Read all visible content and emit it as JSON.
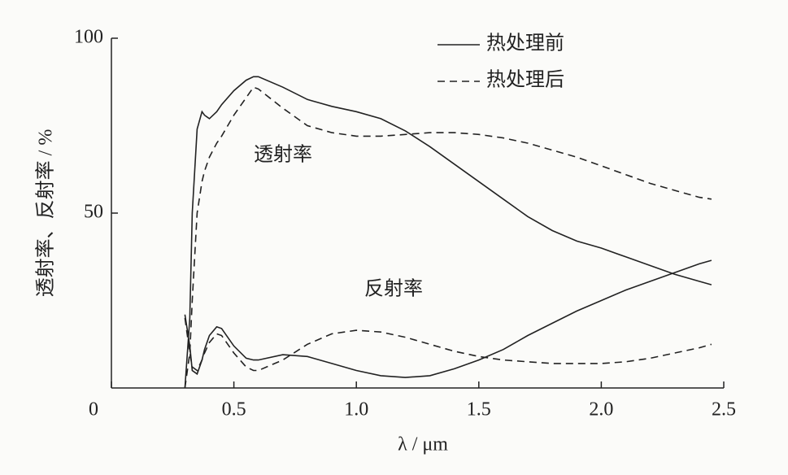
{
  "chart_data": {
    "type": "line",
    "xlabel": "λ / μm",
    "ylabel": "透射率、反射率 / %",
    "annotations": [
      "透射率",
      "反射率"
    ],
    "x": [
      0.3,
      0.32,
      0.33,
      0.35,
      0.37,
      0.38,
      0.4,
      0.43,
      0.45,
      0.5,
      0.55,
      0.58,
      0.6,
      0.7,
      0.8,
      0.9,
      1.0,
      1.1,
      1.2,
      1.3,
      1.4,
      1.5,
      1.6,
      1.7,
      1.8,
      1.9,
      2.0,
      2.1,
      2.2,
      2.3,
      2.4,
      2.45
    ],
    "series": [
      {
        "name": "热处理前",
        "color": "#222222",
        "style": "solid",
        "values": [
          0,
          20,
          50,
          74,
          79,
          78,
          77,
          79,
          81,
          85,
          88,
          89,
          89,
          86,
          82.5,
          80.5,
          79,
          77,
          73.5,
          69,
          64,
          59,
          54,
          49,
          45,
          42,
          40,
          37.5,
          35,
          32.5,
          30.5,
          29.5
        ]
      },
      {
        "name": "热处理后",
        "color": "#222222",
        "style": "dashed",
        "values": [
          0,
          10,
          25,
          50,
          59,
          62,
          66,
          70,
          72,
          78,
          83,
          86,
          85.5,
          80,
          75,
          73,
          72,
          72,
          72.5,
          73,
          73,
          72.5,
          71.5,
          70,
          68,
          66,
          63.5,
          61,
          58.5,
          56.5,
          54.5,
          54
        ]
      },
      {
        "color": "#222222",
        "style": "solid",
        "values": [
          21,
          12,
          5,
          4,
          8,
          11,
          15,
          17.5,
          17,
          12,
          8.5,
          8,
          8,
          9.5,
          9,
          7,
          5,
          3.5,
          3,
          3.5,
          5.5,
          8,
          11,
          15,
          18.5,
          22,
          25,
          28,
          30.5,
          33,
          35.5,
          36.5
        ]
      },
      {
        "color": "#222222",
        "style": "dashed",
        "values": [
          20,
          10,
          6,
          5,
          8,
          10,
          13,
          15.5,
          15,
          10,
          6,
          5,
          5,
          8,
          12.5,
          15.5,
          16.5,
          16,
          14.5,
          12.5,
          10.5,
          9,
          8,
          7.5,
          7,
          7,
          7,
          7.5,
          8.5,
          10,
          11.5,
          12.5
        ]
      }
    ],
    "xlim": [
      0,
      2.5
    ],
    "xticks": [
      0,
      0.5,
      {
        "value": 1,
        "label": "1.0"
      },
      1.5,
      {
        "value": 2,
        "label": "2.0"
      },
      2.5
    ],
    "ylim": [
      0,
      100
    ],
    "yticks": [
      50,
      100
    ],
    "legend": "upper right",
    "grid": false
  }
}
